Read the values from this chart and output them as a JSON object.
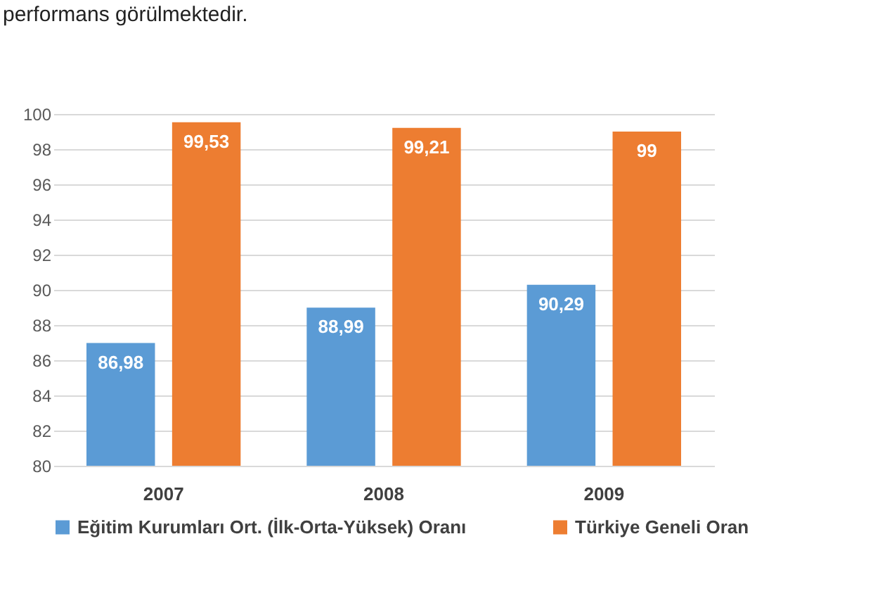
{
  "chart_data": {
    "type": "bar",
    "categories": [
      "2007",
      "2008",
      "2009"
    ],
    "series": [
      {
        "name": "Eğitim Kurumları Ort. (İlk-Orta-Yüksek) Oranı",
        "color": "#5b9bd5",
        "values": [
          86.98,
          88.99,
          90.29
        ],
        "value_labels": [
          "86,98",
          "88,99",
          "90,29"
        ]
      },
      {
        "name": "Türkiye Geneli Oran",
        "color": "#ed7d31",
        "values": [
          99.53,
          99.21,
          99
        ],
        "value_labels": [
          "99,53",
          "99,21",
          "99"
        ]
      }
    ],
    "ylim": [
      80,
      100
    ],
    "yticks": [
      80,
      82,
      84,
      86,
      88,
      90,
      92,
      94,
      96,
      98,
      100
    ],
    "grid": "y",
    "legend": "bottom",
    "data_labels": true,
    "annotations": [
      "performans görülmektedir."
    ]
  }
}
